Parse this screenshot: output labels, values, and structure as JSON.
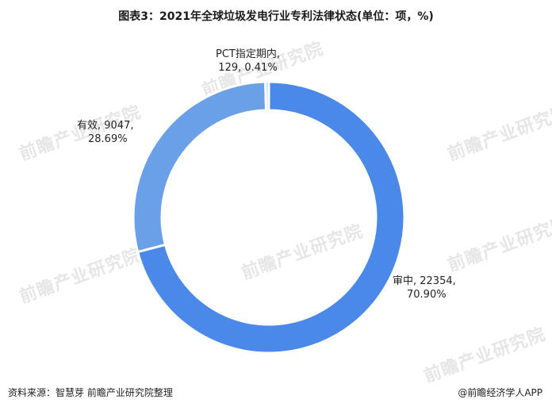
{
  "title": "图表3：2021年全球垃圾发电行业专利法律状态(单位：项，%)",
  "watermark_text": "前瞻产业研究院",
  "colors": {
    "accent": "#4a89e8",
    "light": "#6aa0e8",
    "pale": "#bcd4f2"
  },
  "chart_data": {
    "type": "pie",
    "donut": true,
    "slices": [
      {
        "name": "审中",
        "value": 22354,
        "percent": "70.90%",
        "color": "#4a89e8"
      },
      {
        "name": "有效",
        "value": 9047,
        "percent": "28.69%",
        "color": "#6aa0e8"
      },
      {
        "name": "PCT指定期内",
        "value": 129,
        "percent": "0.41%",
        "color": "#bcd4f2"
      }
    ],
    "labels": [
      {
        "line1": "PCT指定期内,",
        "line2": "129, 0.41%"
      },
      {
        "line1": "有效, 9047,",
        "line2": "28.69%"
      },
      {
        "line1": "审中, 22354,",
        "line2": "70.90%"
      }
    ]
  },
  "footer": {
    "source": "资料来源：智慧芽 前瞻产业研究院整理",
    "brand": "@前瞻经济学人APP"
  }
}
